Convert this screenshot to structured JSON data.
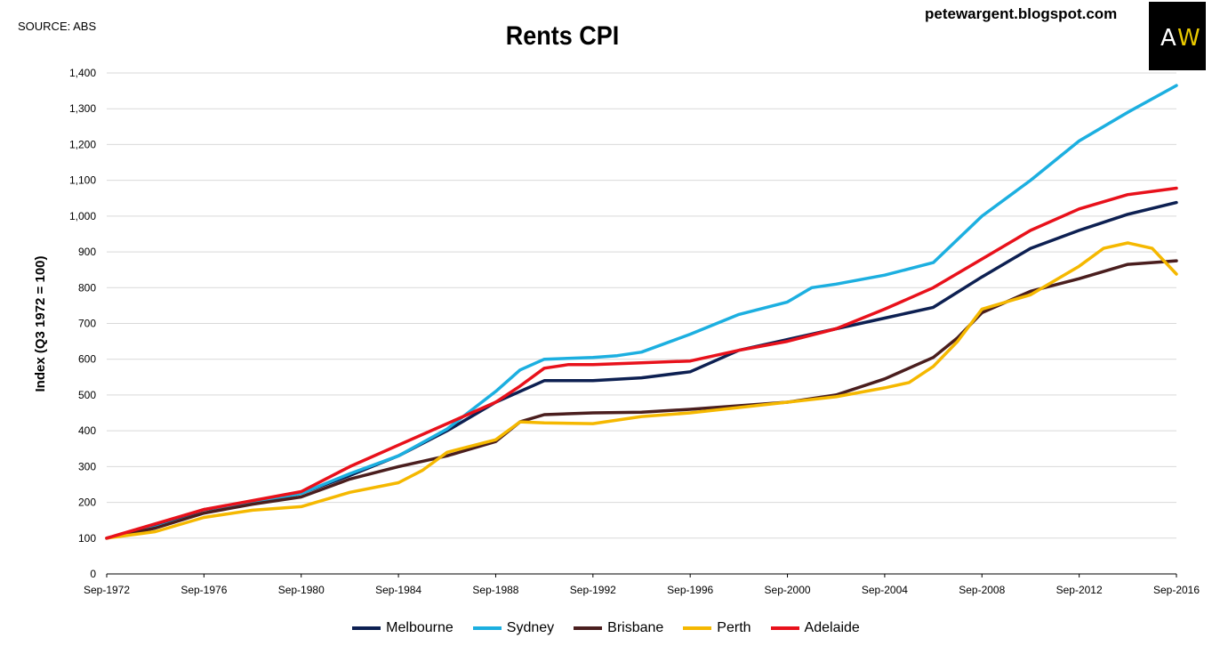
{
  "source_label": "SOURCE: ABS",
  "site_label": "petewargent.blogspot.com",
  "logo": {
    "left": "A",
    "right": "W"
  },
  "chart_data": {
    "type": "line",
    "title": "Rents CPI",
    "xlabel": "",
    "ylabel": "Index (Q3 1972 = 100)",
    "ylim": [
      0,
      1400
    ],
    "yticks": [
      "0",
      "100",
      "200",
      "300",
      "400",
      "500",
      "600",
      "700",
      "800",
      "900",
      "1,000",
      "1,100",
      "1,200",
      "1,300",
      "1,400"
    ],
    "xlim": [
      1972.67,
      2016.67
    ],
    "xticks": [
      {
        "label": "Sep-1972",
        "x": 1972.67
      },
      {
        "label": "Sep-1976",
        "x": 1976.67
      },
      {
        "label": "Sep-1980",
        "x": 1980.67
      },
      {
        "label": "Sep-1984",
        "x": 1984.67
      },
      {
        "label": "Sep-1988",
        "x": 1988.67
      },
      {
        "label": "Sep-1992",
        "x": 1992.67
      },
      {
        "label": "Sep-1996",
        "x": 1996.67
      },
      {
        "label": "Sep-2000",
        "x": 2000.67
      },
      {
        "label": "Sep-2004",
        "x": 2004.67
      },
      {
        "label": "Sep-2008",
        "x": 2008.67
      },
      {
        "label": "Sep-2012",
        "x": 2012.67
      },
      {
        "label": "Sep-2016",
        "x": 2016.67
      }
    ],
    "grid": true,
    "legend_position": "bottom",
    "series": [
      {
        "name": "Melbourne",
        "color": "#0d2052",
        "x": [
          1972.67,
          1974.67,
          1976.67,
          1978.67,
          1980.67,
          1982.67,
          1984.67,
          1986.67,
          1988.67,
          1990.67,
          1991.67,
          1992.67,
          1994.67,
          1996.67,
          1998.67,
          2000.67,
          2002.67,
          2004.67,
          2006.67,
          2008.67,
          2010.67,
          2012.67,
          2014.67,
          2016.67
        ],
        "y": [
          100,
          135,
          180,
          200,
          225,
          275,
          330,
          400,
          480,
          540,
          540,
          540,
          548,
          565,
          625,
          655,
          685,
          715,
          745,
          830,
          910,
          960,
          1005,
          1038
        ]
      },
      {
        "name": "Sydney",
        "color": "#1cafe0",
        "x": [
          1972.67,
          1974.67,
          1976.67,
          1978.67,
          1980.67,
          1982.67,
          1984.67,
          1986.67,
          1988.67,
          1989.67,
          1990.67,
          1992.67,
          1993.67,
          1994.67,
          1996.67,
          1998.67,
          2000.67,
          2001.67,
          2002.67,
          2004.67,
          2006.67,
          2008.67,
          2010.67,
          2012.67,
          2014.67,
          2016.67
        ],
        "y": [
          100,
          130,
          170,
          200,
          225,
          280,
          330,
          405,
          510,
          570,
          600,
          605,
          610,
          620,
          670,
          725,
          760,
          800,
          810,
          835,
          870,
          1000,
          1100,
          1210,
          1290,
          1365
        ]
      },
      {
        "name": "Brisbane",
        "color": "#4a1e1e",
        "x": [
          1972.67,
          1974.67,
          1976.67,
          1978.67,
          1980.67,
          1982.67,
          1984.67,
          1986.67,
          1988.67,
          1989.67,
          1990.67,
          1992.67,
          1994.67,
          1996.67,
          1998.67,
          2000.67,
          2002.67,
          2004.67,
          2006.67,
          2007.67,
          2008.67,
          2010.67,
          2012.67,
          2014.67,
          2016.67
        ],
        "y": [
          100,
          128,
          170,
          195,
          215,
          265,
          300,
          330,
          370,
          425,
          445,
          450,
          452,
          460,
          470,
          480,
          500,
          545,
          605,
          660,
          730,
          790,
          825,
          865,
          875
        ]
      },
      {
        "name": "Perth",
        "color": "#f5b800",
        "x": [
          1972.67,
          1974.67,
          1976.67,
          1978.67,
          1980.67,
          1982.67,
          1984.67,
          1985.67,
          1986.67,
          1988.67,
          1989.67,
          1990.67,
          1992.67,
          1994.67,
          1996.67,
          1998.67,
          2000.67,
          2002.67,
          2004.67,
          2005.67,
          2006.67,
          2007.67,
          2008.67,
          2010.67,
          2012.67,
          2013.67,
          2014.67,
          2015.67,
          2016.67
        ],
        "y": [
          100,
          118,
          158,
          178,
          188,
          228,
          255,
          290,
          340,
          375,
          425,
          422,
          420,
          440,
          450,
          465,
          480,
          495,
          520,
          535,
          580,
          650,
          740,
          780,
          860,
          910,
          925,
          910,
          838
        ]
      },
      {
        "name": "Adelaide",
        "color": "#e8111b",
        "x": [
          1972.67,
          1974.67,
          1976.67,
          1978.67,
          1980.67,
          1982.67,
          1984.67,
          1986.67,
          1988.67,
          1989.67,
          1990.67,
          1991.67,
          1992.67,
          1994.67,
          1996.67,
          1998.67,
          2000.67,
          2002.67,
          2004.67,
          2006.67,
          2008.67,
          2010.67,
          2012.67,
          2014.67,
          2016.67
        ],
        "y": [
          100,
          140,
          180,
          205,
          230,
          300,
          360,
          420,
          480,
          525,
          575,
          585,
          585,
          590,
          595,
          625,
          650,
          685,
          740,
          800,
          880,
          960,
          1020,
          1060,
          1078
        ]
      }
    ]
  }
}
